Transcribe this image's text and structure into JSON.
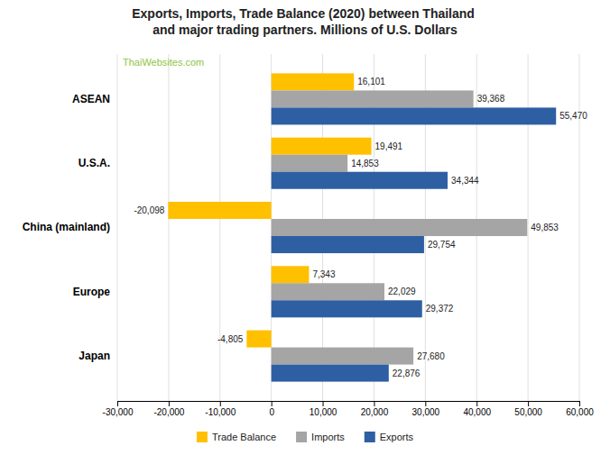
{
  "chart_data": {
    "type": "bar",
    "orientation": "horizontal",
    "title": "Exports,  Imports,  Trade Balance (2020) between Thailand\nand major trading partners.  Millions of U.S. Dollars",
    "annotations": [
      {
        "text": "ThaiWebsites.com",
        "color": "#8dc63f"
      }
    ],
    "categories": [
      "ASEAN",
      "U.S.A.",
      "China (mainland)",
      "Europe",
      "Japan"
    ],
    "series": [
      {
        "name": "Trade Balance",
        "color": "#ffc000",
        "values": [
          16101,
          19491,
          -20098,
          7343,
          -4805
        ],
        "value_labels": [
          "16,101",
          "19,491",
          "-20,098",
          "7,343",
          "-4,805"
        ]
      },
      {
        "name": "Imports",
        "color": "#a5a5a5",
        "values": [
          39368,
          14853,
          49853,
          22029,
          27680
        ],
        "value_labels": [
          "39,368",
          "14,853",
          "49,853",
          "22,029",
          "27,680"
        ]
      },
      {
        "name": "Exports",
        "color": "#2e5fa3",
        "values": [
          55470,
          34344,
          29754,
          29372,
          22876
        ],
        "value_labels": [
          "55,470",
          "34,344",
          "29,754",
          "29,372",
          "22,876"
        ]
      }
    ],
    "xlim": [
      -30000,
      60000
    ],
    "xticks": [
      {
        "value": -30000,
        "label": "-30,000"
      },
      {
        "value": -20000,
        "label": "-20,000"
      },
      {
        "value": -10000,
        "label": "-10,000"
      },
      0,
      {
        "value": 10000,
        "label": "10,000"
      },
      {
        "value": 20000,
        "label": "20,000"
      },
      {
        "value": 30000,
        "label": "30,000"
      },
      {
        "value": 40000,
        "label": "40,000"
      },
      {
        "value": 50000,
        "label": "50,000"
      },
      {
        "value": 60000,
        "label": "60,000"
      }
    ],
    "grid": true,
    "data_labels": true,
    "legend": "bottom"
  }
}
